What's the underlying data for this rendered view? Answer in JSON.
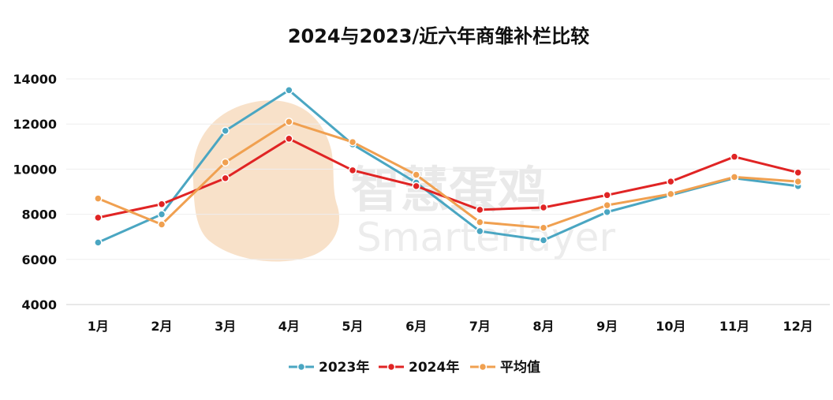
{
  "chart_data": {
    "type": "line",
    "title": "2024与2023/近六年商雏补栏比较",
    "xlabel": "",
    "ylabel": "",
    "categories": [
      "1月",
      "2月",
      "3月",
      "4月",
      "5月",
      "6月",
      "7月",
      "8月",
      "9月",
      "10月",
      "11月",
      "12月"
    ],
    "ylim": [
      4000,
      14000
    ],
    "yticks": [
      4000,
      6000,
      8000,
      10000,
      12000,
      14000
    ],
    "grid": true,
    "legend_position": "bottom",
    "series": [
      {
        "name": "2023年",
        "color": "#4aa6c2",
        "values": [
          6750,
          8000,
          11700,
          13500,
          11100,
          9400,
          7250,
          6850,
          8100,
          8850,
          9600,
          9250
        ]
      },
      {
        "name": "2024年",
        "color": "#e02424",
        "values": [
          7850,
          8450,
          9600,
          11350,
          9950,
          9250,
          8200,
          8300,
          8850,
          9450,
          10550,
          9850
        ]
      },
      {
        "name": "平均值",
        "color": "#f0a050",
        "values": [
          8700,
          7550,
          10300,
          12100,
          11200,
          9750,
          7650,
          7400,
          8400,
          8900,
          9650,
          9450
        ]
      }
    ]
  },
  "watermark": {
    "text_cn": "智慧蛋鸡",
    "text_en": "Smarterlayer",
    "logo_color": "#f7dcc0"
  }
}
